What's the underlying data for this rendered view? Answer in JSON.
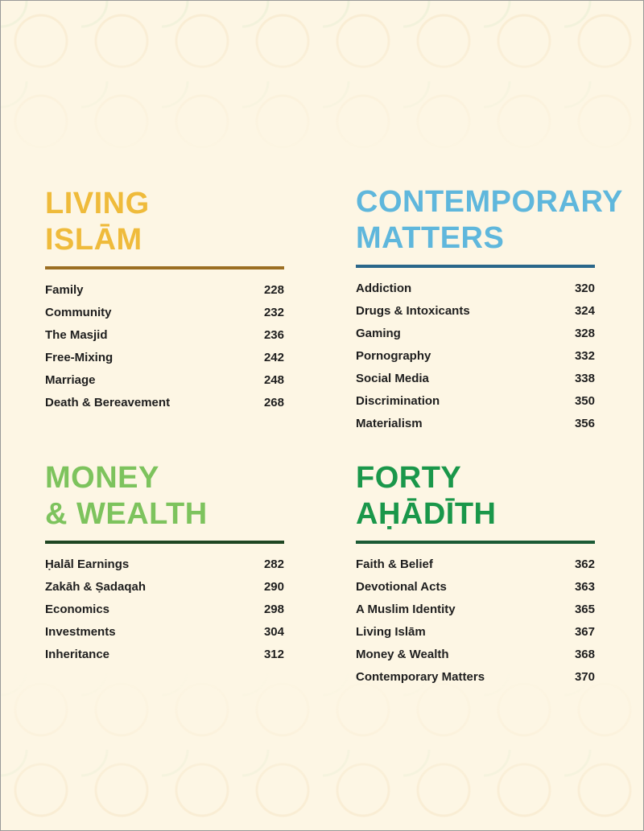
{
  "sections": [
    {
      "title_line1": "LIVING",
      "title_line2": "ISLĀM",
      "title_color": "#efbb3b",
      "rule_color": "#9b6e22",
      "entries": [
        {
          "label": "Family",
          "page": "228"
        },
        {
          "label": "Community",
          "page": "232"
        },
        {
          "label": "The Masjid",
          "page": "236"
        },
        {
          "label": "Free-Mixing",
          "page": "242"
        },
        {
          "label": "Marriage",
          "page": "248"
        },
        {
          "label": "Death & Bereavement",
          "page": "268"
        }
      ]
    },
    {
      "title_line1": "CONTEMPORARY",
      "title_line2": "MATTERS",
      "title_color": "#5fb7dc",
      "rule_color": "#2a678a",
      "entries": [
        {
          "label": "Addiction",
          "page": "320"
        },
        {
          "label": "Drugs & Intoxicants",
          "page": "324"
        },
        {
          "label": "Gaming",
          "page": "328"
        },
        {
          "label": "Pornography",
          "page": "332"
        },
        {
          "label": "Social Media",
          "page": "338"
        },
        {
          "label": "Discrimination",
          "page": "350"
        },
        {
          "label": "Materialism",
          "page": "356"
        }
      ]
    },
    {
      "title_line1": "MONEY",
      "title_line2": "& WEALTH",
      "title_color": "#7dc35d",
      "rule_color": "#1f4622",
      "entries": [
        {
          "label": "Ḥalāl Earnings",
          "page": "282"
        },
        {
          "label": "Zakāh & Ṣadaqah",
          "page": "290"
        },
        {
          "label": "Economics",
          "page": "298"
        },
        {
          "label": "Investments",
          "page": "304"
        },
        {
          "label": "Inheritance",
          "page": "312"
        }
      ]
    },
    {
      "title_line1": "FORTY",
      "title_line2": "AḤĀDĪTH",
      "title_color": "#1a974a",
      "rule_color": "#1b5a35",
      "entries": [
        {
          "label": "Faith & Belief",
          "page": "362"
        },
        {
          "label": "Devotional Acts",
          "page": "363"
        },
        {
          "label": "A Muslim Identity",
          "page": "365"
        },
        {
          "label": "Living Islām",
          "page": "367"
        },
        {
          "label": "Money & Wealth",
          "page": "368"
        },
        {
          "label": "Contemporary Matters",
          "page": "370"
        }
      ]
    }
  ]
}
